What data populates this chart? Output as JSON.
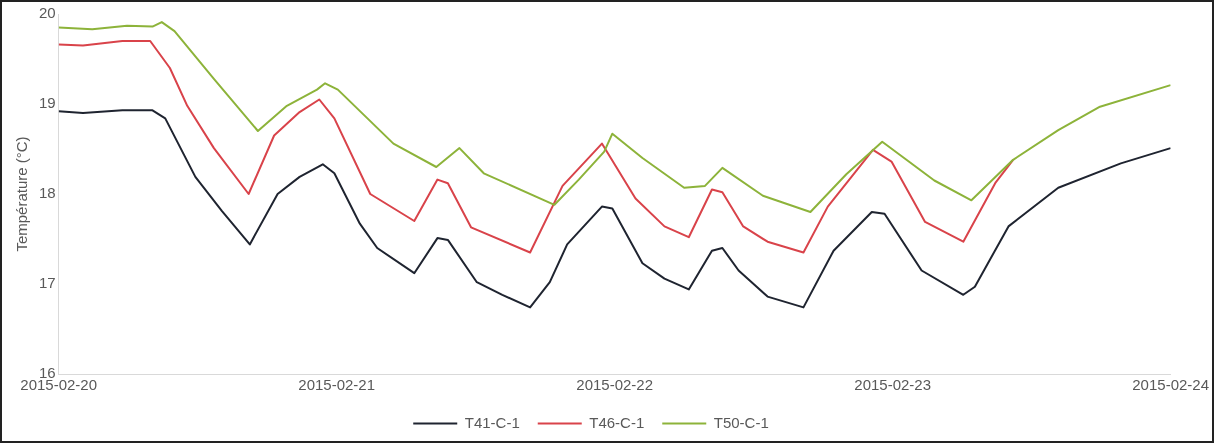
{
  "chart_data": {
    "type": "line",
    "ylabel": "Température (°C)",
    "xlim": [
      "2015-02-20",
      "2015-02-24"
    ],
    "xticks": [
      "2015-02-20",
      "2015-02-21",
      "2015-02-22",
      "2015-02-23",
      "2015-02-24"
    ],
    "ylim": [
      16,
      20
    ],
    "yticks": [
      16,
      17,
      18,
      19,
      20
    ],
    "grid": false,
    "legend": "bottom",
    "marker": "none",
    "line_style": "solid",
    "series": [
      {
        "name": "T41-C-1",
        "color": "#1f2430",
        "x": [
          "2015-02-20T00:00",
          "2015-02-20T02:06",
          "2015-02-20T05:30",
          "2015-02-20T08:06",
          "2015-02-20T09:12",
          "2015-02-20T11:48",
          "2015-02-20T14:06",
          "2015-02-20T16:30",
          "2015-02-20T18:54",
          "2015-02-20T20:48",
          "2015-02-20T22:48",
          "2015-02-20T23:48",
          "2015-02-21T02:00",
          "2015-02-21T03:30",
          "2015-02-21T06:42",
          "2015-02-21T08:42",
          "2015-02-21T09:36",
          "2015-02-21T12:06",
          "2015-02-21T14:18",
          "2015-02-21T16:42",
          "2015-02-21T18:24",
          "2015-02-21T19:54",
          "2015-02-21T22:54",
          "2015-02-21T23:48",
          "2015-02-22T02:24",
          "2015-02-22T04:18",
          "2015-02-22T06:24",
          "2015-02-22T08:24",
          "2015-02-22T09:18",
          "2015-02-22T10:42",
          "2015-02-22T13:12",
          "2015-02-22T16:18",
          "2015-02-22T18:54",
          "2015-02-22T22:12",
          "2015-02-22T23:18",
          "2015-02-23T02:30",
          "2015-02-23T06:06",
          "2015-02-23T07:06",
          "2015-02-23T10:00",
          "2015-02-23T14:18",
          "2015-02-23T19:42",
          "2015-02-24T00:00"
        ],
        "values": [
          18.92,
          18.9,
          18.93,
          18.93,
          18.84,
          18.19,
          17.81,
          17.44,
          18.0,
          18.19,
          18.33,
          18.23,
          17.67,
          17.4,
          17.12,
          17.51,
          17.49,
          17.02,
          16.88,
          16.74,
          17.02,
          17.44,
          17.86,
          17.84,
          17.23,
          17.06,
          16.94,
          17.37,
          17.4,
          17.15,
          16.86,
          16.74,
          17.37,
          17.8,
          17.78,
          17.15,
          16.88,
          16.97,
          17.64,
          18.07,
          18.34,
          18.51
        ]
      },
      {
        "name": "T46-C-1",
        "color": "#d9434a",
        "x": [
          "2015-02-20T00:00",
          "2015-02-20T02:06",
          "2015-02-20T05:30",
          "2015-02-20T07:54",
          "2015-02-20T09:36",
          "2015-02-20T11:06",
          "2015-02-20T13:24",
          "2015-02-20T16:24",
          "2015-02-20T18:36",
          "2015-02-20T20:48",
          "2015-02-20T22:30",
          "2015-02-20T23:48",
          "2015-02-21T02:54",
          "2015-02-21T06:42",
          "2015-02-21T08:42",
          "2015-02-21T09:36",
          "2015-02-21T11:36",
          "2015-02-21T16:42",
          "2015-02-21T19:30",
          "2015-02-21T22:54",
          "2015-02-22T01:48",
          "2015-02-22T04:18",
          "2015-02-22T06:24",
          "2015-02-22T08:24",
          "2015-02-22T09:18",
          "2015-02-22T11:06",
          "2015-02-22T13:12",
          "2015-02-22T16:18",
          "2015-02-22T18:24",
          "2015-02-22T22:18",
          "2015-02-22T23:54",
          "2015-02-23T02:48",
          "2015-02-23T06:06",
          "2015-02-23T08:54",
          "2015-02-23T10:24"
        ],
        "values": [
          19.66,
          19.65,
          19.7,
          19.7,
          19.4,
          18.98,
          18.51,
          18.0,
          18.65,
          18.91,
          19.05,
          18.84,
          18.0,
          17.7,
          18.16,
          18.12,
          17.63,
          17.35,
          18.09,
          18.56,
          17.95,
          17.64,
          17.52,
          18.05,
          18.02,
          17.64,
          17.47,
          17.35,
          17.86,
          18.49,
          18.36,
          17.69,
          17.47,
          18.13,
          18.38
        ]
      },
      {
        "name": "T50-C-1",
        "color": "#8db33a",
        "x": [
          "2015-02-20T00:00",
          "2015-02-20T02:54",
          "2015-02-20T05:54",
          "2015-02-20T08:06",
          "2015-02-20T08:54",
          "2015-02-20T10:00",
          "2015-02-20T13:24",
          "2015-02-20T17:12",
          "2015-02-20T19:42",
          "2015-02-20T22:18",
          "2015-02-20T23:00",
          "2015-02-21T00:06",
          "2015-02-21T04:54",
          "2015-02-21T08:36",
          "2015-02-21T10:36",
          "2015-02-21T12:42",
          "2015-02-21T18:48",
          "2015-02-21T20:54",
          "2015-02-21T23:06",
          "2015-02-21T23:48",
          "2015-02-22T02:24",
          "2015-02-22T06:00",
          "2015-02-22T07:48",
          "2015-02-22T09:18",
          "2015-02-22T12:48",
          "2015-02-22T16:54",
          "2015-02-22T20:00",
          "2015-02-22T23:06",
          "2015-02-23T03:36",
          "2015-02-23T06:48",
          "2015-02-23T10:24",
          "2015-02-23T14:18",
          "2015-02-23T17:54",
          "2015-02-24T00:00"
        ],
        "values": [
          19.85,
          19.83,
          19.87,
          19.86,
          19.91,
          19.81,
          19.28,
          18.7,
          18.98,
          19.16,
          19.23,
          19.16,
          18.56,
          18.3,
          18.51,
          18.23,
          17.88,
          18.16,
          18.47,
          18.67,
          18.4,
          18.07,
          18.09,
          18.29,
          17.98,
          17.8,
          18.22,
          18.58,
          18.15,
          17.93,
          18.38,
          18.71,
          18.97,
          19.21
        ]
      }
    ]
  }
}
